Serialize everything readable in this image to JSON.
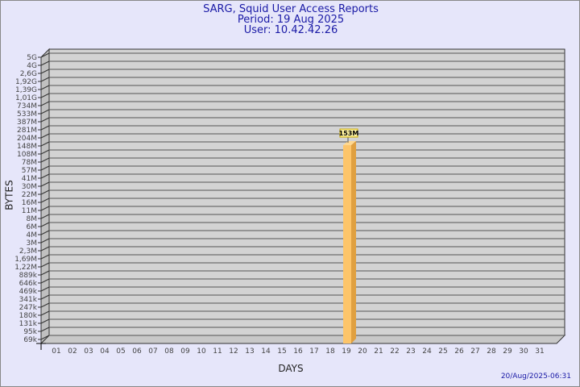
{
  "chart_data": {
    "type": "bar",
    "title": "SARG, Squid User Access Reports",
    "subtitle": [
      "Period: 19 Aug 2025",
      "User: 10.42.42.26"
    ],
    "xlabel": "DAYS",
    "ylabel": "BYTES",
    "y_scale": "log",
    "y_ticks": [
      "5G",
      "4G",
      "2,6G",
      "1,92G",
      "1,39G",
      "1,01G",
      "734M",
      "533M",
      "387M",
      "281M",
      "204M",
      "148M",
      "108M",
      "78M",
      "57M",
      "41M",
      "30M",
      "22M",
      "16M",
      "11M",
      "8M",
      "6M",
      "4M",
      "3M",
      "2,3M",
      "1,69M",
      "1,22M",
      "889k",
      "646k",
      "469k",
      "341k",
      "247k",
      "180k",
      "131k",
      "95k",
      "69k"
    ],
    "categories": [
      "01",
      "02",
      "03",
      "04",
      "05",
      "06",
      "07",
      "08",
      "09",
      "10",
      "11",
      "12",
      "13",
      "14",
      "15",
      "16",
      "17",
      "18",
      "19",
      "20",
      "21",
      "22",
      "23",
      "24",
      "25",
      "26",
      "27",
      "28",
      "29",
      "30",
      "31"
    ],
    "values": {
      "19": "153M"
    },
    "grid": true,
    "colors": {
      "bar": "#fdc56a",
      "bar_side": "#e0a040",
      "panel": "#d3d3d3",
      "title": "#1a1aa6"
    }
  },
  "footer": "20/Aug/2025-06:31"
}
